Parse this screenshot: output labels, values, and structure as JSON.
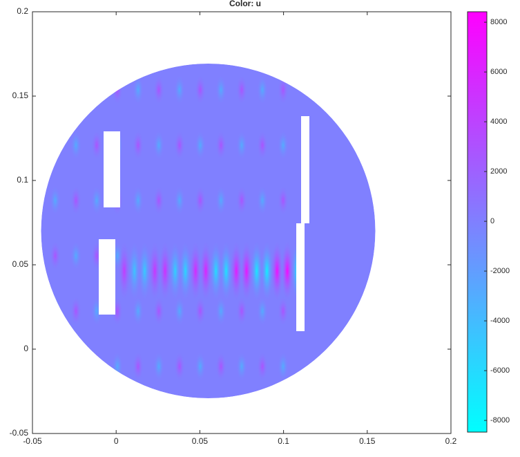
{
  "chart_data": {
    "type": "surface",
    "title": "Color: u",
    "xlim": [
      -0.05,
      0.2
    ],
    "xticks": [
      -0.05,
      0,
      0.05,
      0.1,
      0.15,
      0.2
    ],
    "ylim": [
      -0.05,
      0.2
    ],
    "yticks": [
      -0.05,
      0,
      0.05,
      0.1,
      0.15,
      0.2
    ],
    "colorbar": {
      "lim": [
        -8470,
        8420
      ],
      "ticks": [
        -8000,
        -6000,
        -4000,
        -2000,
        0,
        2000,
        4000,
        6000,
        8000
      ],
      "colors": [
        "#00ffff",
        "#ff00ff"
      ]
    }
  }
}
